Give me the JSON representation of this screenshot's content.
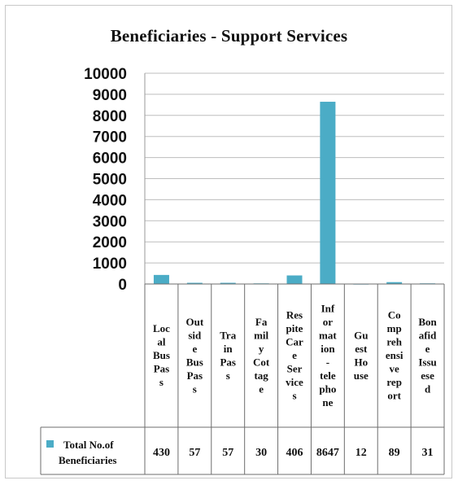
{
  "chart_data": {
    "type": "bar",
    "title": "Beneficiaries - Support Services",
    "categories": [
      "Local Bus Pass",
      "Outside Bus Pass",
      "Train Pass",
      "Family Cottage",
      "Respite Care Service",
      "Information - telephone",
      "Guest House",
      "Comprehensive report",
      "Bonafide Issuesed"
    ],
    "category_lines": [
      [
        "Loc",
        "al",
        "Bus",
        "Pas",
        "s"
      ],
      [
        "Out",
        "sid",
        "e",
        "Bus",
        "Pas",
        "s"
      ],
      [
        "Tra",
        "in",
        "Pas",
        "s"
      ],
      [
        "Fa",
        "mil",
        "y",
        "Cot",
        "tag",
        "e"
      ],
      [
        "Res",
        "pite",
        "Car",
        "e",
        "Ser",
        "vice",
        "s"
      ],
      [
        "Inf",
        "or",
        "mat",
        "ion",
        "-",
        "tele",
        "pho",
        "ne"
      ],
      [
        "Gu",
        "est",
        "Ho",
        "use"
      ],
      [
        "Co",
        "mp",
        "reh",
        "ensi",
        "ve",
        "rep",
        "ort"
      ],
      [
        "Bon",
        "afid",
        "e",
        "Issu",
        "ese",
        "d"
      ]
    ],
    "series": [
      {
        "name": "Total No.of Beneficiaries",
        "values": [
          430,
          57,
          57,
          30,
          406,
          8647,
          12,
          89,
          31
        ],
        "value_labels": [
          "430",
          "57",
          "57",
          "30",
          "406",
          "8647",
          "12",
          "89",
          "31"
        ]
      }
    ],
    "legend_lines": [
      "Total No.of",
      "Beneficiaries"
    ],
    "ylim": [
      0,
      10000
    ],
    "yticks": [
      10000,
      9000,
      8000,
      7000,
      6000,
      5000,
      4000,
      3000,
      2000,
      1000,
      0
    ],
    "grid": true,
    "legend_placement": "data-table",
    "colors": {
      "bar": "#4bacc6",
      "grid": "#bdbdbd",
      "table": "#6e6e6e"
    }
  }
}
